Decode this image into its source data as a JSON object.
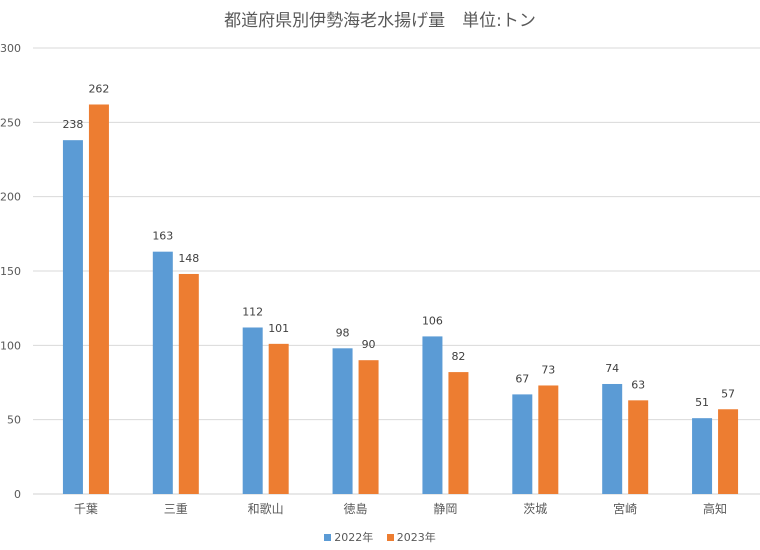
{
  "chart_data": {
    "type": "bar",
    "title": "都道府県別伊勢海老水揚げ量　単位:トン",
    "categories": [
      "千葉",
      "三重",
      "和歌山",
      "徳島",
      "静岡",
      "茨城",
      "宮崎",
      "高知"
    ],
    "series": [
      {
        "name": "2022年",
        "color": "#5B9BD5",
        "values": [
          238,
          163,
          112,
          98,
          106,
          67,
          74,
          51
        ]
      },
      {
        "name": "2023年",
        "color": "#ED7D31",
        "values": [
          262,
          148,
          101,
          90,
          82,
          73,
          63,
          57
        ]
      }
    ],
    "xlabel": "",
    "ylabel": "",
    "ylim": [
      0,
      300
    ],
    "yticks": [
      0,
      50,
      100,
      150,
      200,
      250,
      300
    ],
    "grid": true,
    "legend_position": "bottom",
    "data_labels": true
  }
}
